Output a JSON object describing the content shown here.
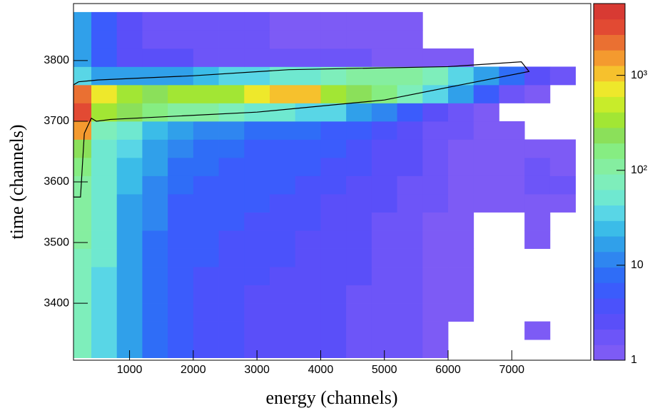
{
  "chart_data": {
    "type": "histogram2d",
    "x_label": "energy (channels)",
    "y_label": "time (channels)",
    "xlim": [
      120,
      8240
    ],
    "ylim": [
      3306,
      3894
    ],
    "xticks": [
      1000,
      2000,
      3000,
      4000,
      5000,
      6000,
      7000
    ],
    "yticks": [
      3400,
      3500,
      3600,
      3700,
      3800
    ],
    "zlim": [
      1,
      5700
    ],
    "zlog": true,
    "zticks": [
      1,
      10,
      {
        "value": 100,
        "label": "10²"
      },
      {
        "value": 1000,
        "label": "10³"
      }
    ],
    "palette": [
      "#7d5bf5",
      "#6d55f8",
      "#5a4ff9",
      "#4b52fb",
      "#3b5cfc",
      "#2f6df7",
      "#2f86f0",
      "#30a0ea",
      "#3bbce8",
      "#59d6e6",
      "#6fe8d0",
      "#7eeebb",
      "#85eea0",
      "#86ed82",
      "#8be05a",
      "#a2e634",
      "#c8ec2a",
      "#eee82b",
      "#f6c12d",
      "#f49a2f",
      "#ea7032",
      "#e24a33",
      "#d83a33"
    ],
    "x_edges": [
      120,
      400,
      800,
      1200,
      1600,
      2000,
      2400,
      2800,
      3200,
      3600,
      4000,
      4400,
      4800,
      5200,
      5600,
      6000,
      6400,
      6800,
      7200,
      7600,
      8000
    ],
    "y_edges": [
      3310,
      3340,
      3370,
      3400,
      3430,
      3460,
      3490,
      3520,
      3550,
      3580,
      3610,
      3640,
      3670,
      3700,
      3730,
      3760,
      3790,
      3820,
      3850,
      3880
    ],
    "z": [
      [
        80,
        40,
        15,
        8,
        5,
        4,
        4,
        3,
        3,
        3,
        3,
        2,
        2,
        2,
        1,
        null,
        null,
        null,
        null,
        null
      ],
      [
        80,
        40,
        15,
        8,
        5,
        4,
        4,
        3,
        3,
        3,
        3,
        2,
        2,
        2,
        1,
        null,
        null,
        null,
        1,
        null
      ],
      [
        85,
        40,
        15,
        8,
        5,
        4,
        4,
        3,
        3,
        3,
        3,
        2,
        2,
        2,
        1,
        1,
        null,
        null,
        null,
        null
      ],
      [
        85,
        42,
        16,
        8,
        5,
        4,
        4,
        3,
        3,
        3,
        3,
        2,
        2,
        2,
        1,
        1,
        null,
        null,
        null,
        null
      ],
      [
        90,
        42,
        16,
        8,
        5,
        4,
        4,
        4,
        3,
        3,
        3,
        3,
        2,
        2,
        1,
        1,
        null,
        null,
        null,
        null
      ],
      [
        90,
        44,
        16,
        9,
        5,
        5,
        4,
        4,
        4,
        3,
        3,
        3,
        2,
        2,
        1,
        1,
        null,
        null,
        null,
        null
      ],
      [
        95,
        45,
        18,
        9,
        6,
        5,
        4,
        4,
        4,
        3,
        3,
        3,
        2,
        2,
        1,
        1,
        null,
        null,
        1,
        null
      ],
      [
        100,
        45,
        18,
        10,
        6,
        5,
        5,
        4,
        4,
        4,
        3,
        3,
        2,
        2,
        1,
        1,
        null,
        null,
        1,
        null
      ],
      [
        110,
        48,
        20,
        10,
        6,
        6,
        5,
        5,
        4,
        4,
        3,
        3,
        3,
        2,
        2,
        1,
        1,
        1,
        1,
        1
      ],
      [
        130,
        50,
        22,
        12,
        7,
        6,
        6,
        5,
        5,
        4,
        4,
        3,
        3,
        2,
        2,
        1,
        1,
        1,
        2,
        2
      ],
      [
        150,
        55,
        25,
        14,
        8,
        7,
        6,
        6,
        5,
        5,
        4,
        4,
        3,
        3,
        2,
        1,
        1,
        1,
        2,
        1
      ],
      [
        250,
        60,
        30,
        18,
        10,
        8,
        7,
        6,
        6,
        5,
        5,
        4,
        3,
        3,
        2,
        1,
        1,
        1,
        1,
        1
      ],
      [
        1500,
        80,
        45,
        25,
        15,
        12,
        10,
        9,
        8,
        7,
        6,
        5,
        4,
        3,
        2,
        2,
        1,
        1,
        null,
        null
      ],
      [
        3000,
        400,
        200,
        150,
        120,
        100,
        80,
        60,
        50,
        40,
        30,
        20,
        10,
        5,
        3,
        2,
        1,
        null,
        null,
        null
      ],
      [
        2500,
        600,
        300,
        250,
        300,
        300,
        400,
        800,
        1200,
        1000,
        400,
        250,
        150,
        80,
        40,
        15,
        5,
        2,
        1,
        null
      ],
      [
        30,
        20,
        20,
        15,
        20,
        25,
        30,
        40,
        50,
        60,
        80,
        100,
        120,
        100,
        80,
        40,
        15,
        8,
        3,
        2
      ],
      [
        20,
        5,
        3,
        3,
        3,
        2,
        2,
        2,
        2,
        2,
        2,
        2,
        1,
        1,
        1,
        1,
        null,
        null,
        null,
        null
      ],
      [
        15,
        6,
        3,
        2,
        2,
        2,
        2,
        2,
        1,
        1,
        1,
        1,
        1,
        1,
        null,
        null,
        null,
        null,
        null,
        null
      ],
      [
        15,
        6,
        3,
        2,
        2,
        2,
        2,
        2,
        1,
        1,
        1,
        1,
        1,
        1,
        null,
        null,
        null,
        null,
        null,
        null
      ]
    ],
    "gate": {
      "x": [
        120,
        230,
        290,
        400,
        480,
        700,
        3000,
        5000,
        6200,
        7270,
        7150,
        6000,
        3500,
        2000,
        500,
        200,
        120
      ],
      "y": [
        3575,
        3575,
        3680,
        3705,
        3700,
        3703,
        3715,
        3735,
        3760,
        3782,
        3798,
        3790,
        3785,
        3775,
        3768,
        3765,
        3760
      ]
    }
  }
}
